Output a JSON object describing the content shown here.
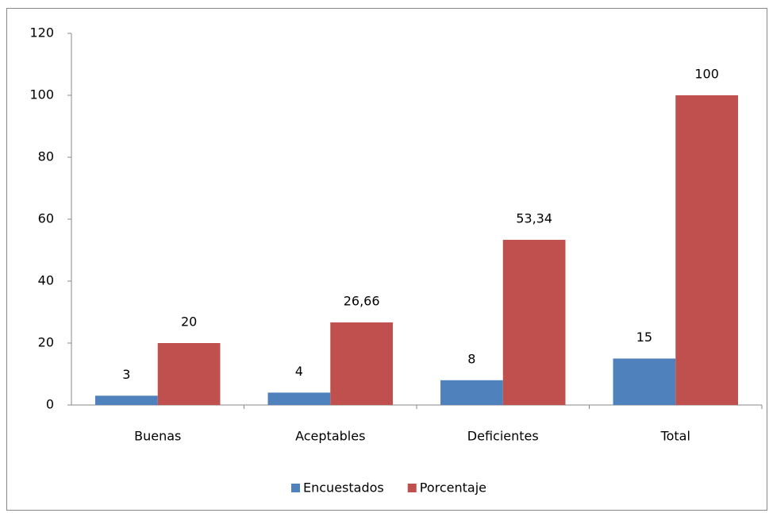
{
  "chart_data": {
    "type": "bar",
    "categories": [
      "Buenas",
      "Aceptables",
      "Deficientes",
      "Total"
    ],
    "series": [
      {
        "name": "Encuestados",
        "color": "#4f81bd",
        "values": [
          3,
          4,
          8,
          15
        ]
      },
      {
        "name": "Porcentaje",
        "color": "#c0504d",
        "values": [
          20,
          26.66,
          53.34,
          100
        ],
        "value_labels": [
          "20",
          "26,66",
          "53,34",
          "100"
        ]
      }
    ],
    "ylim": [
      0,
      120
    ],
    "yticks": [
      0,
      20,
      40,
      60,
      80,
      100,
      120
    ],
    "grid": false,
    "legend": "bottom"
  }
}
